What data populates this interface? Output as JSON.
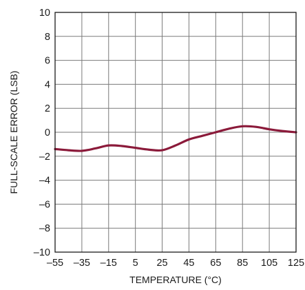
{
  "chart_data": {
    "type": "line",
    "title": "",
    "xlabel": "TEMPERATURE (°C)",
    "ylabel": "FULL-SCALE ERROR (LSB)",
    "xlim": [
      -55,
      125
    ],
    "ylim": [
      -10,
      10
    ],
    "x_ticks": [
      -55,
      -35,
      -15,
      5,
      25,
      45,
      65,
      85,
      105,
      125
    ],
    "y_ticks": [
      -10,
      -8,
      -6,
      -4,
      -2,
      0,
      2,
      4,
      6,
      8,
      10
    ],
    "x_tick_labels": [
      "–55",
      "–35",
      "–15",
      "5",
      "25",
      "45",
      "65",
      "85",
      "105",
      "125"
    ],
    "y_tick_labels": [
      "–10",
      "–8",
      "–6",
      "–4",
      "–2",
      "0",
      "2",
      "4",
      "6",
      "8",
      "10"
    ],
    "grid": true,
    "series": [
      {
        "color": "#8b1a3a",
        "x": [
          -55,
          -45,
          -35,
          -25,
          -15,
          -5,
          5,
          15,
          25,
          35,
          45,
          55,
          65,
          75,
          85,
          95,
          105,
          115,
          125
        ],
        "y": [
          -1.4,
          -1.5,
          -1.55,
          -1.35,
          -1.1,
          -1.15,
          -1.3,
          -1.45,
          -1.5,
          -1.1,
          -0.6,
          -0.3,
          0.0,
          0.3,
          0.5,
          0.45,
          0.25,
          0.1,
          0.0
        ]
      }
    ]
  }
}
